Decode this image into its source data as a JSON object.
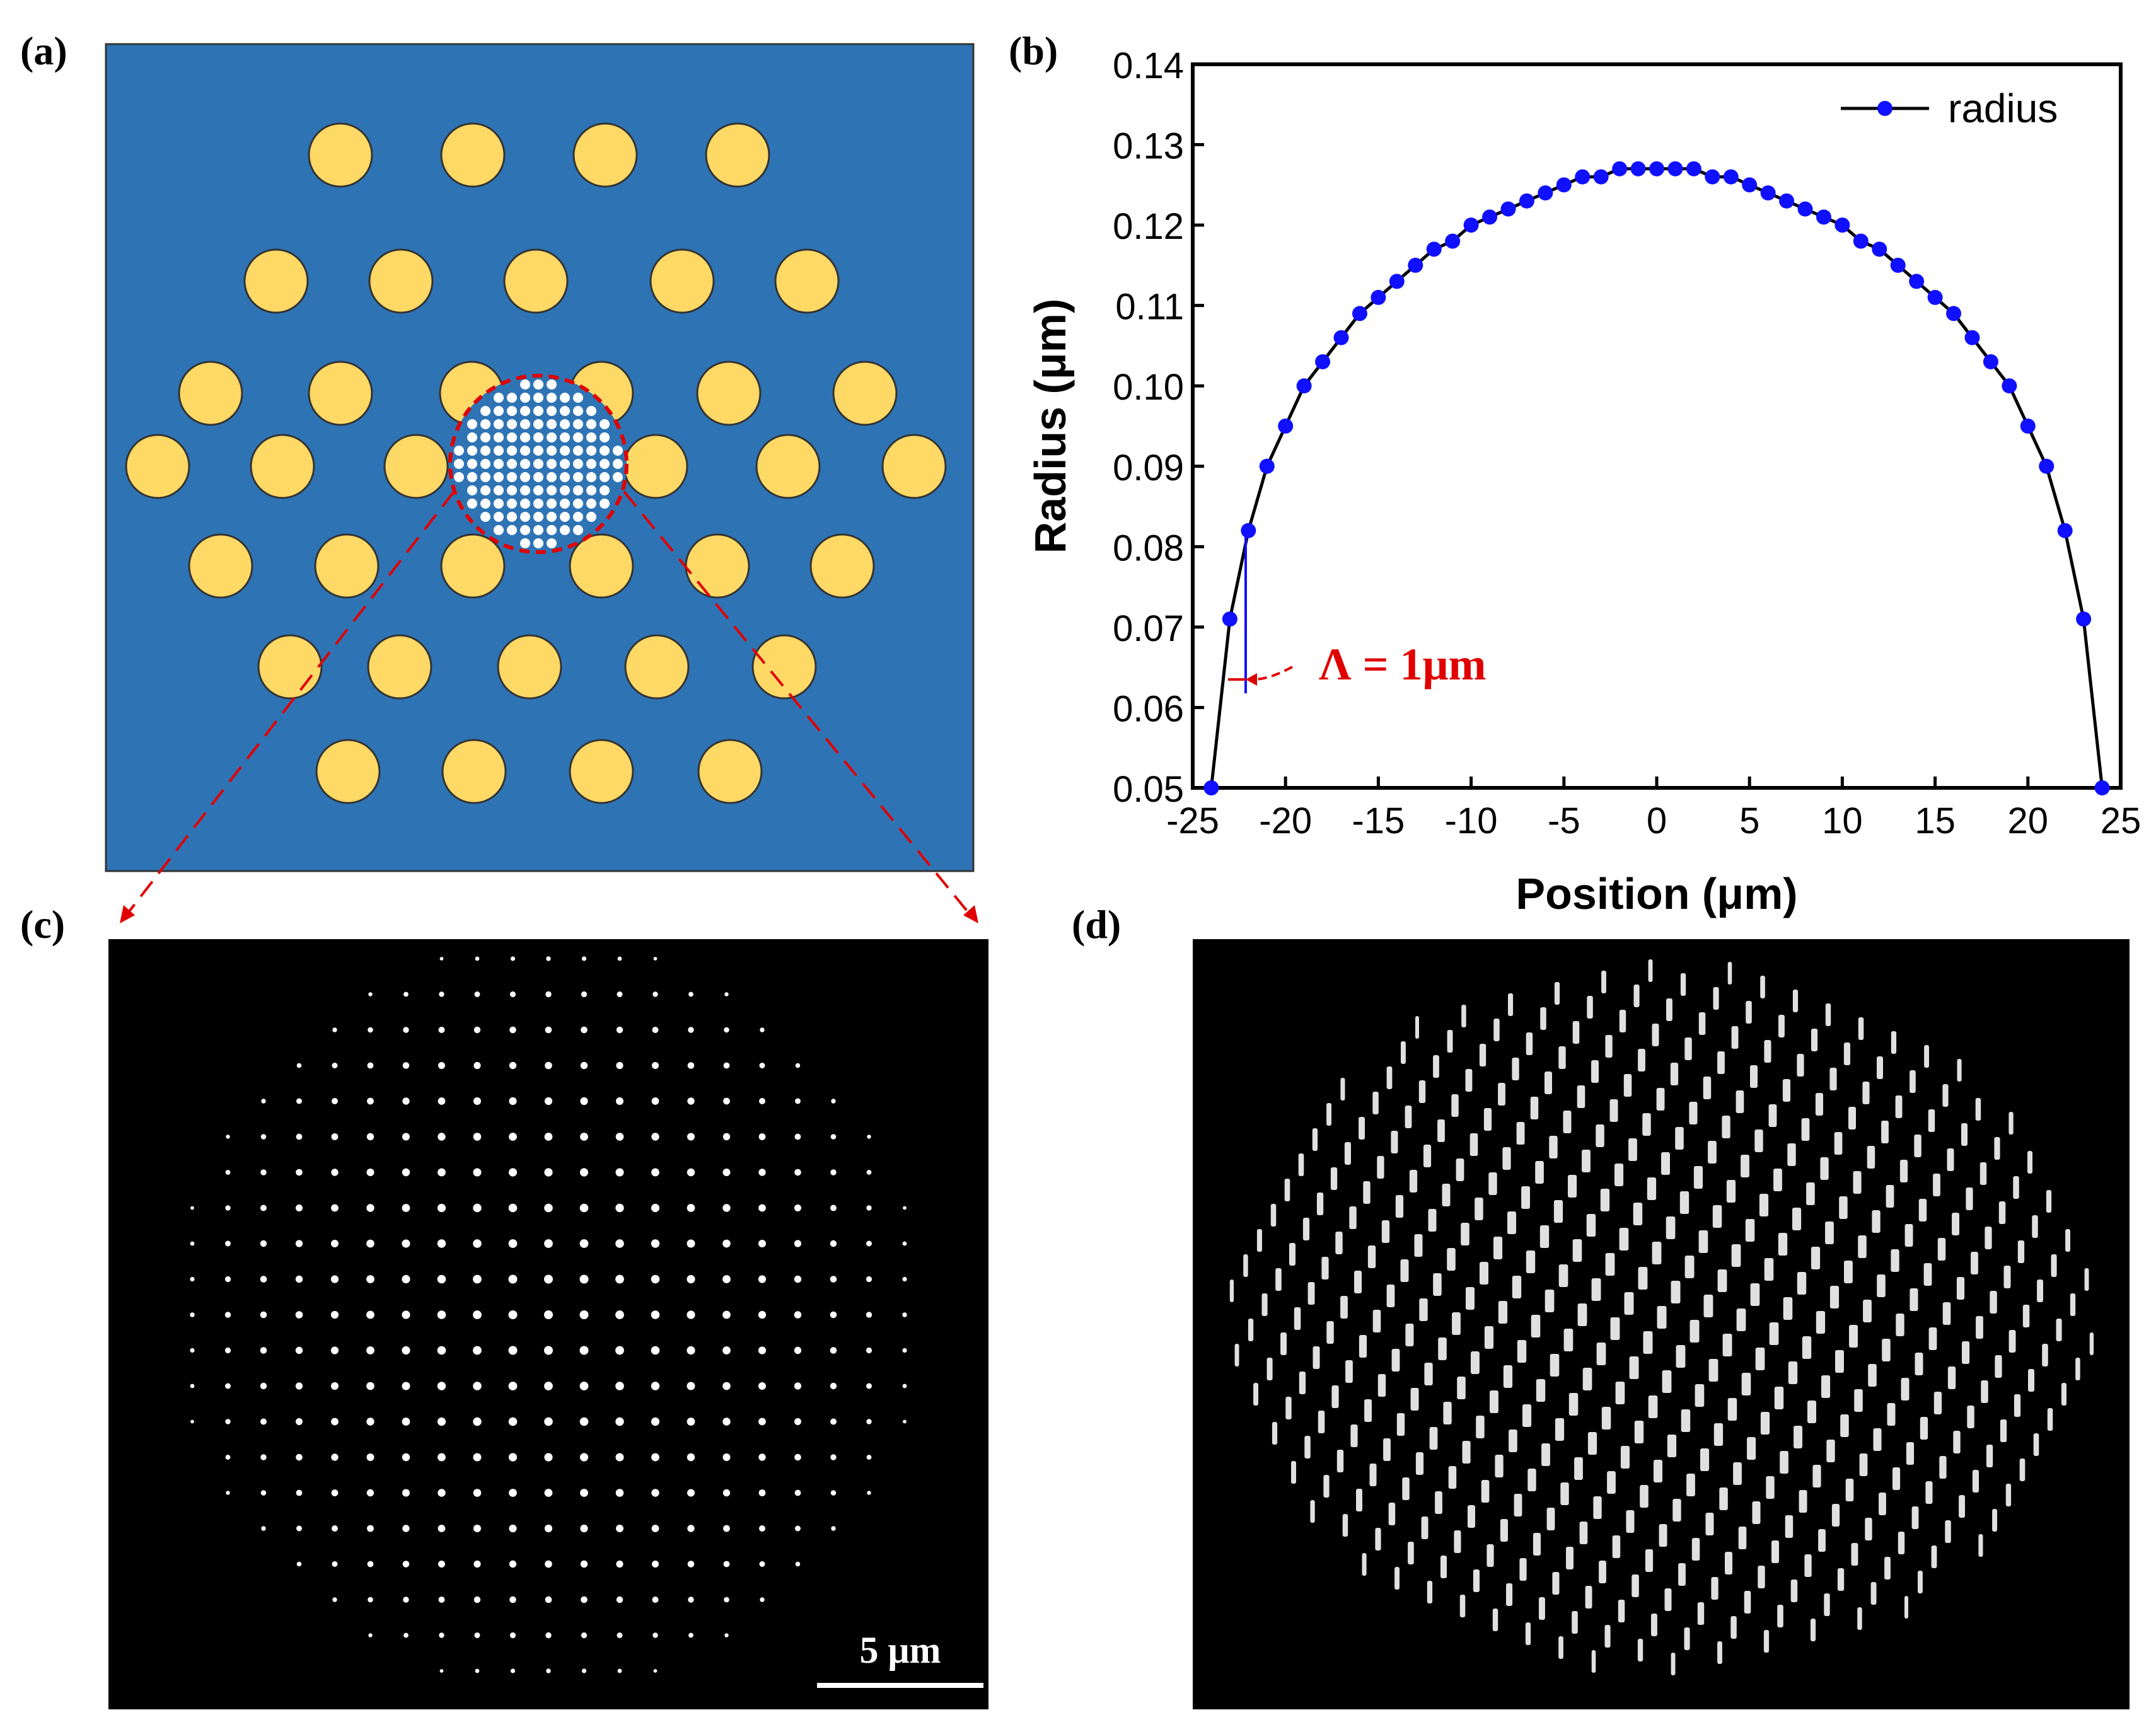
{
  "panels": {
    "a": {
      "label": "(a)"
    },
    "b": {
      "label": "(b)"
    },
    "c": {
      "label": "(c)",
      "scalebar": "5 μm"
    },
    "d": {
      "label": "(d)"
    }
  },
  "colors": {
    "fiber_background": "#2e74b5",
    "rods": "#ffd966",
    "zoom_lines": "#e00000",
    "curve": "#000000",
    "markers": "#1010ff",
    "annotation": "#e00000"
  },
  "annotation": {
    "text": "Λ = 1μm"
  },
  "chart_data": {
    "type": "line",
    "title": "",
    "xlabel": "Position (μm)",
    "ylabel": "Radius (μm)",
    "xlim": [
      -25,
      25
    ],
    "ylim": [
      0.05,
      0.14
    ],
    "xticks": [
      "-25",
      "-20",
      "-15",
      "-10",
      "-5",
      "0",
      "5",
      "10",
      "15",
      "20",
      "25"
    ],
    "yticks": [
      "0.05",
      "0.06",
      "0.07",
      "0.08",
      "0.09",
      "0.10",
      "0.11",
      "0.12",
      "0.13",
      "0.14"
    ],
    "legend": "top-right",
    "grid": false,
    "series": [
      {
        "name": "radius",
        "x": [
          -24,
          -23,
          -22,
          -21,
          -20,
          -19,
          -18,
          -17,
          -16,
          -15,
          -14,
          -13,
          -12,
          -11,
          -10,
          -9,
          -8,
          -7,
          -6,
          -5,
          -4,
          -3,
          -2,
          -1,
          0,
          1,
          2,
          3,
          4,
          5,
          6,
          7,
          8,
          9,
          10,
          11,
          12,
          13,
          14,
          15,
          16,
          17,
          18,
          19,
          20,
          21,
          22,
          23,
          24
        ],
        "y": [
          0.05,
          0.071,
          0.082,
          0.09,
          0.095,
          0.1,
          0.103,
          0.106,
          0.109,
          0.111,
          0.113,
          0.115,
          0.117,
          0.118,
          0.12,
          0.121,
          0.122,
          0.123,
          0.124,
          0.125,
          0.126,
          0.126,
          0.127,
          0.127,
          0.127,
          0.127,
          0.127,
          0.126,
          0.126,
          0.125,
          0.124,
          0.123,
          0.122,
          0.121,
          0.12,
          0.118,
          0.117,
          0.115,
          0.113,
          0.111,
          0.109,
          0.106,
          0.103,
          0.1,
          0.095,
          0.09,
          0.082,
          0.071,
          0.05
        ]
      }
    ]
  }
}
